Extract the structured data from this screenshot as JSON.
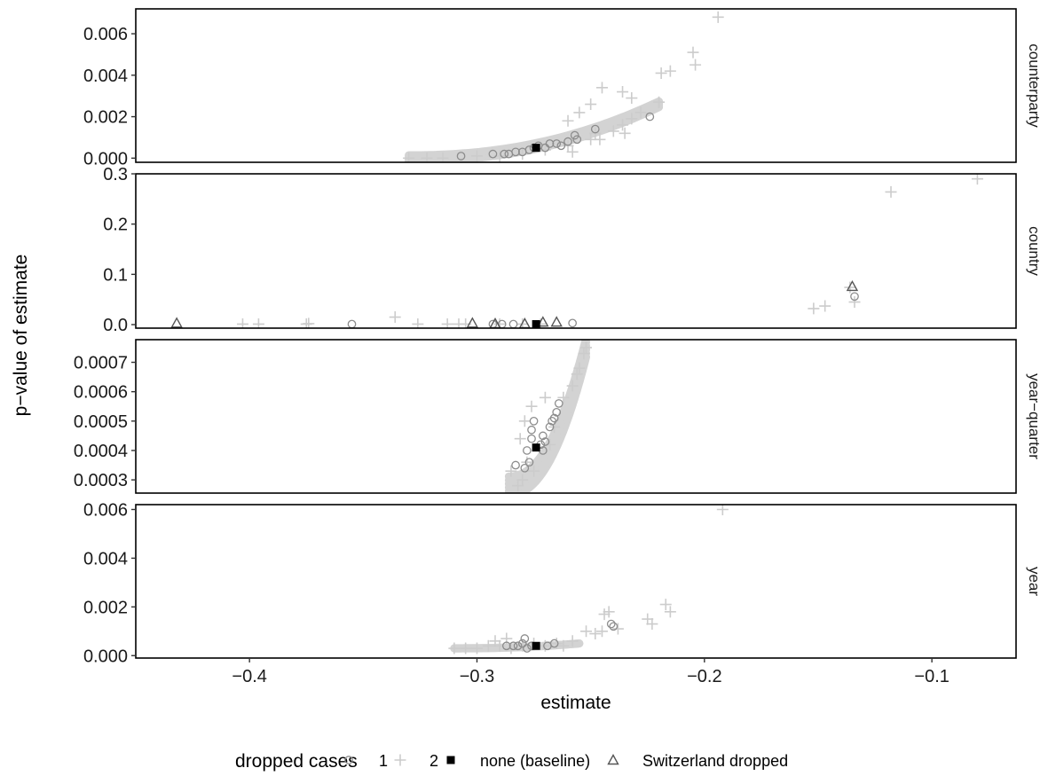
{
  "chart_data": {
    "type": "scatter",
    "xlabel": "estimate",
    "ylabel": "p−value of estimate",
    "xlim": [
      -0.45,
      -0.063
    ],
    "x_ticks": [
      -0.4,
      -0.3,
      -0.2,
      -0.1
    ],
    "x_tick_labels": [
      "−0.4",
      "−0.3",
      "−0.2",
      "−0.1"
    ],
    "grid": false,
    "legend": {
      "position": "bottom",
      "title": "dropped cases",
      "entries": [
        {
          "label": "1",
          "shape": "circle",
          "color": "#8c8c8c"
        },
        {
          "label": "2",
          "shape": "plus",
          "color": "#cccccc"
        },
        {
          "label": "none (baseline)",
          "shape": "square",
          "color": "#000000"
        },
        {
          "label": "Switzerland dropped",
          "shape": "triangle",
          "color": "#555555"
        }
      ]
    },
    "panels": [
      {
        "strip": "counterparty",
        "ylim": [
          -0.0002,
          0.0072
        ],
        "y_ticks": [
          0.0,
          0.002,
          0.004,
          0.006
        ],
        "y_tick_labels": [
          "0.000",
          "0.002",
          "0.004",
          "0.006"
        ],
        "series": [
          {
            "name": "2",
            "points": [
              [
                -0.33,
                0.0
              ],
              [
                -0.322,
                0.0
              ],
              [
                -0.315,
                0.0
              ],
              [
                -0.3,
                0.0001
              ],
              [
                -0.29,
                0.0001
              ],
              [
                -0.28,
                0.0002
              ],
              [
                -0.27,
                0.0004
              ],
              [
                -0.26,
                0.0006
              ],
              [
                -0.25,
                0.0009
              ],
              [
                -0.24,
                0.0013
              ],
              [
                -0.236,
                0.0016
              ],
              [
                -0.232,
                0.0019
              ],
              [
                -0.228,
                0.0022
              ],
              [
                -0.245,
                0.0034
              ],
              [
                -0.236,
                0.0032
              ],
              [
                -0.232,
                0.0029
              ],
              [
                -0.22,
                0.0027
              ],
              [
                -0.219,
                0.0041
              ],
              [
                -0.215,
                0.0042
              ],
              [
                -0.205,
                0.0051
              ],
              [
                -0.204,
                0.0045
              ],
              [
                -0.194,
                0.0068
              ],
              [
                -0.25,
                0.0026
              ],
              [
                -0.255,
                0.0022
              ],
              [
                -0.26,
                0.0018
              ],
              [
                -0.235,
                0.0012
              ],
              [
                -0.246,
                0.0009
              ],
              [
                -0.248,
                0.0012
              ],
              [
                -0.258,
                0.0003
              ]
            ]
          },
          {
            "name": "1",
            "points": [
              [
                -0.307,
                0.0001
              ],
              [
                -0.293,
                0.0002
              ],
              [
                -0.288,
                0.0002
              ],
              [
                -0.286,
                0.0002
              ],
              [
                -0.283,
                0.0003
              ],
              [
                -0.28,
                0.0003
              ],
              [
                -0.277,
                0.0004
              ],
              [
                -0.275,
                0.0005
              ],
              [
                -0.273,
                0.0006
              ],
              [
                -0.27,
                0.0005
              ],
              [
                -0.268,
                0.0007
              ],
              [
                -0.265,
                0.0007
              ],
              [
                -0.263,
                0.0006
              ],
              [
                -0.26,
                0.0008
              ],
              [
                -0.257,
                0.0011
              ],
              [
                -0.256,
                0.0009
              ],
              [
                -0.248,
                0.0014
              ],
              [
                -0.224,
                0.002
              ]
            ]
          },
          {
            "name": "none (baseline)",
            "points": [
              [
                -0.274,
                0.0005
              ]
            ]
          }
        ],
        "band": {
          "x_from": -0.33,
          "x_to": -0.22,
          "y_from": 0.0,
          "y_to": 0.0026,
          "lines": 5
        }
      },
      {
        "strip": "country",
        "ylim": [
          -0.007,
          0.3
        ],
        "y_ticks": [
          0.0,
          0.1,
          0.2,
          0.3
        ],
        "y_tick_labels": [
          "0.0",
          "0.1",
          "0.2",
          "0.3"
        ],
        "series": [
          {
            "name": "2",
            "points": [
              [
                -0.403,
                0.001
              ],
              [
                -0.396,
                0.001
              ],
              [
                -0.374,
                0.002
              ],
              [
                -0.375,
                0.001
              ],
              [
                -0.336,
                0.015
              ],
              [
                -0.326,
                0.001
              ],
              [
                -0.313,
                0.001
              ],
              [
                -0.308,
                0.001
              ],
              [
                -0.305,
                0.001
              ],
              [
                -0.29,
                0.001
              ],
              [
                -0.28,
                0.001
              ],
              [
                -0.272,
                0.001
              ],
              [
                -0.152,
                0.032
              ],
              [
                -0.147,
                0.037
              ],
              [
                -0.134,
                0.045
              ],
              [
                -0.136,
                0.074
              ],
              [
                -0.118,
                0.264
              ],
              [
                -0.08,
                0.29
              ]
            ]
          },
          {
            "name": "1",
            "points": [
              [
                -0.355,
                0.001
              ],
              [
                -0.293,
                0.001
              ],
              [
                -0.289,
                0.001
              ],
              [
                -0.284,
                0.001
              ],
              [
                -0.258,
                0.003
              ],
              [
                -0.134,
                0.056
              ]
            ]
          },
          {
            "name": "Switzerland dropped",
            "points": [
              [
                -0.432,
                0.003
              ],
              [
                -0.302,
                0.003
              ],
              [
                -0.292,
                0.002
              ],
              [
                -0.279,
                0.002
              ],
              [
                -0.271,
                0.005
              ],
              [
                -0.265,
                0.005
              ],
              [
                -0.135,
                0.076
              ]
            ]
          },
          {
            "name": "none (baseline)",
            "points": [
              [
                -0.274,
                0.001
              ]
            ]
          }
        ]
      },
      {
        "strip": "year−quarter",
        "ylim": [
          0.000255,
          0.000777
        ],
        "y_ticks": [
          0.0003,
          0.0004,
          0.0005,
          0.0006,
          0.0007
        ],
        "y_tick_labels": [
          "0.0003",
          "0.0004",
          "0.0005",
          "0.0006",
          "0.0007"
        ],
        "series": [
          {
            "name": "2",
            "points": [
              [
                -0.282,
                0.00028
              ],
              [
                -0.285,
                0.00033
              ],
              [
                -0.28,
                0.0003
              ],
              [
                -0.278,
                0.00036
              ],
              [
                -0.275,
                0.00033
              ],
              [
                -0.268,
                0.00042
              ],
              [
                -0.266,
                0.00048
              ],
              [
                -0.262,
                0.00058
              ],
              [
                -0.258,
                0.00062
              ],
              [
                -0.255,
                0.00068
              ],
              [
                -0.253,
                0.00073
              ],
              [
                -0.252,
                0.00075
              ],
              [
                -0.256,
                0.00066
              ],
              [
                -0.281,
                0.00044
              ],
              [
                -0.279,
                0.0005
              ],
              [
                -0.276,
                0.00055
              ],
              [
                -0.27,
                0.00058
              ]
            ]
          },
          {
            "name": "1",
            "points": [
              [
                -0.283,
                0.00035
              ],
              [
                -0.279,
                0.00034
              ],
              [
                -0.277,
                0.00036
              ],
              [
                -0.278,
                0.0004
              ],
              [
                -0.276,
                0.00044
              ],
              [
                -0.276,
                0.00047
              ],
              [
                -0.275,
                0.0005
              ],
              [
                -0.272,
                0.00042
              ],
              [
                -0.271,
                0.00045
              ],
              [
                -0.271,
                0.0004
              ],
              [
                -0.27,
                0.00043
              ],
              [
                -0.268,
                0.00048
              ],
              [
                -0.267,
                0.0005
              ],
              [
                -0.266,
                0.00051
              ],
              [
                -0.265,
                0.00053
              ],
              [
                -0.264,
                0.00056
              ]
            ]
          },
          {
            "name": "none (baseline)",
            "points": [
              [
                -0.274,
                0.00041
              ]
            ]
          }
        ],
        "band": {
          "x_from": -0.286,
          "x_to": -0.252,
          "y_from": 0.00028,
          "y_to": 0.00075,
          "lines": 6
        }
      },
      {
        "strip": "year",
        "ylim": [
          -0.0001,
          0.0062
        ],
        "y_ticks": [
          0.0,
          0.002,
          0.004,
          0.006
        ],
        "y_tick_labels": [
          "0.000",
          "0.002",
          "0.004",
          "0.006"
        ],
        "series": [
          {
            "name": "2",
            "points": [
              [
                -0.31,
                0.0003
              ],
              [
                -0.305,
                0.0003
              ],
              [
                -0.3,
                0.0003
              ],
              [
                -0.295,
                0.0004
              ],
              [
                -0.29,
                0.0004
              ],
              [
                -0.285,
                0.0003
              ],
              [
                -0.28,
                0.0004
              ],
              [
                -0.275,
                0.0005
              ],
              [
                -0.27,
                0.0004
              ],
              [
                -0.265,
                0.0005
              ],
              [
                -0.262,
                0.0004
              ],
              [
                -0.258,
                0.0006
              ],
              [
                -0.252,
                0.001
              ],
              [
                -0.248,
                0.0009
              ],
              [
                -0.245,
                0.001
              ],
              [
                -0.244,
                0.0017
              ],
              [
                -0.242,
                0.0018
              ],
              [
                -0.238,
                0.0011
              ],
              [
                -0.225,
                0.0015
              ],
              [
                -0.223,
                0.0013
              ],
              [
                -0.217,
                0.0021
              ],
              [
                -0.215,
                0.0018
              ],
              [
                -0.192,
                0.006
              ],
              [
                -0.287,
                0.0007
              ],
              [
                -0.292,
                0.0006
              ]
            ]
          },
          {
            "name": "1",
            "points": [
              [
                -0.287,
                0.0004
              ],
              [
                -0.284,
                0.0004
              ],
              [
                -0.282,
                0.0004
              ],
              [
                -0.28,
                0.0005
              ],
              [
                -0.279,
                0.0007
              ],
              [
                -0.278,
                0.0003
              ],
              [
                -0.276,
                0.0004
              ],
              [
                -0.269,
                0.0004
              ],
              [
                -0.266,
                0.0005
              ],
              [
                -0.241,
                0.0013
              ],
              [
                -0.24,
                0.0012
              ]
            ]
          },
          {
            "name": "none (baseline)",
            "points": [
              [
                -0.274,
                0.0004
              ]
            ]
          }
        ],
        "band": {
          "x_from": -0.31,
          "x_to": -0.255,
          "y_from": 0.0003,
          "y_to": 0.0005,
          "lines": 3
        }
      }
    ]
  }
}
